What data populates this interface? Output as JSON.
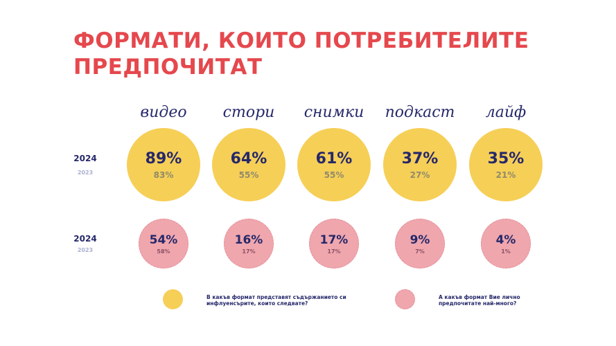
{
  "title": "ФОРМАТИ, КОИТО ПОТРЕБИТЕЛИТЕ ПРЕДПОЧИТАТ",
  "colors": {
    "title": "#e5484d",
    "text": "#26286a",
    "yellow": "#f6cf57",
    "pink": "#efa6ad"
  },
  "chart_data": {
    "type": "bubble-table",
    "title": "ФОРМАТИ, КОИТО ПОТРЕБИТЕЛИТЕ ПРЕДПОЧИТАТ",
    "categories": [
      "видео",
      "стори",
      "снимки",
      "подкаст",
      "лайф"
    ],
    "series": [
      {
        "name": "В какъв формат представят съдържанието си инфлуенсърите, които следвате?",
        "color": "#f6cf57",
        "year_labels": [
          "2024",
          "2023"
        ],
        "values_2024": [
          "89%",
          "64%",
          "61%",
          "37%",
          "35%"
        ],
        "values_2023": [
          "83%",
          "55%",
          "55%",
          "27%",
          "21%"
        ]
      },
      {
        "name": "А какъв формат Вие лично предпочитате най-много?",
        "color": "#efa6ad",
        "year_labels": [
          "2024",
          "2023"
        ],
        "values_2024": [
          "54%",
          "16%",
          "17%",
          "9%",
          "4%"
        ],
        "values_2023": [
          "58%",
          "17%",
          "17%",
          "7%",
          "1%"
        ]
      }
    ]
  }
}
